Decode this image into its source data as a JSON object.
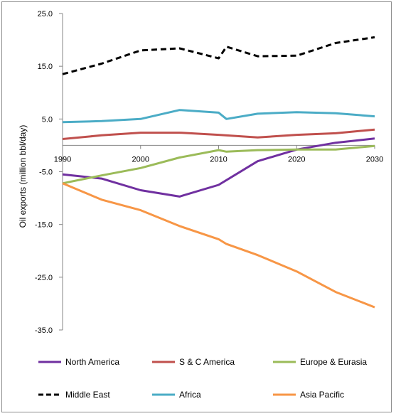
{
  "chart_data": {
    "type": "line",
    "title": "",
    "xlabel": "",
    "ylabel": "Oil exports (million bbl/day)",
    "xlim": [
      1990,
      2030
    ],
    "ylim": [
      -35,
      25
    ],
    "x_ticks": [
      1990,
      2000,
      2010,
      2020,
      2030
    ],
    "x_tick_labels": [
      "1990",
      "2000",
      "2010",
      "2020",
      "2030"
    ],
    "y_ticks": [
      25,
      15,
      5,
      -5,
      -15,
      -25,
      -35
    ],
    "y_tick_labels": [
      "25.0",
      "15.0",
      "5.0",
      "-5.0",
      "-15.0",
      "-25.0",
      "-35.0"
    ],
    "grid": false,
    "legend_position": "bottom",
    "series": [
      {
        "name": "North America",
        "color": "#7030a0",
        "dash": "solid",
        "x": [
          1990,
          1995,
          2000,
          2005,
          2010,
          2015,
          2020,
          2025,
          2030
        ],
        "y": [
          -5.5,
          -6.3,
          -8.5,
          -9.7,
          -7.5,
          -3.0,
          -0.8,
          0.5,
          1.3
        ]
      },
      {
        "name": "S & C America",
        "color": "#c0504d",
        "dash": "solid",
        "x": [
          1990,
          1995,
          2000,
          2005,
          2010,
          2015,
          2020,
          2025,
          2030
        ],
        "y": [
          1.2,
          1.9,
          2.4,
          2.4,
          2.0,
          1.5,
          2.0,
          2.3,
          3.0
        ]
      },
      {
        "name": "Europe & Eurasia",
        "color": "#9bbb59",
        "dash": "solid",
        "x": [
          1990,
          1995,
          2000,
          2005,
          2010,
          2011,
          2015,
          2020,
          2025,
          2030
        ],
        "y": [
          -7.2,
          -5.7,
          -4.3,
          -2.3,
          -0.9,
          -1.2,
          -0.9,
          -0.8,
          -0.8,
          -0.1
        ]
      },
      {
        "name": "Middle East",
        "color": "#000000",
        "dash": "dashed",
        "x": [
          1990,
          1995,
          2000,
          2005,
          2010,
          2011,
          2015,
          2020,
          2025,
          2030
        ],
        "y": [
          13.5,
          15.5,
          18.0,
          18.4,
          16.5,
          18.7,
          16.9,
          17.0,
          19.4,
          20.5
        ]
      },
      {
        "name": "Africa",
        "color": "#4bacc6",
        "dash": "solid",
        "x": [
          1990,
          1995,
          2000,
          2005,
          2010,
          2011,
          2015,
          2020,
          2025,
          2030
        ],
        "y": [
          4.4,
          4.6,
          5.0,
          6.7,
          6.2,
          5.0,
          6.0,
          6.3,
          6.1,
          5.5
        ]
      },
      {
        "name": "Asia Pacific",
        "color": "#f79646",
        "dash": "solid",
        "x": [
          1990,
          1995,
          2000,
          2005,
          2010,
          2011,
          2015,
          2020,
          2025,
          2030
        ],
        "y": [
          -7.2,
          -10.3,
          -12.3,
          -15.3,
          -17.8,
          -18.7,
          -20.8,
          -23.9,
          -27.8,
          -30.7
        ]
      }
    ]
  }
}
